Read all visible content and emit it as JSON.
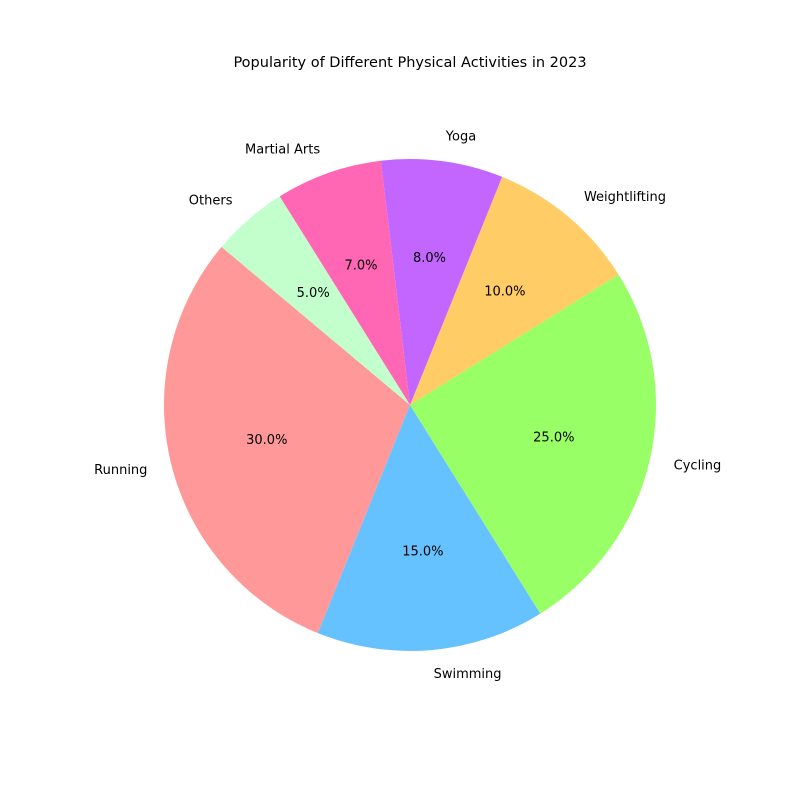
{
  "chart_data": {
    "type": "pie",
    "title": "Popularity of Different Physical Activities in 2023",
    "categories": [
      "Running",
      "Swimming",
      "Cycling",
      "Weightlifting",
      "Yoga",
      "Martial Arts",
      "Others"
    ],
    "values": [
      30.0,
      15.0,
      25.0,
      10.0,
      8.0,
      7.0,
      5.0
    ],
    "percent_labels": [
      "30.0%",
      "15.0%",
      "25.0%",
      "10.0%",
      "8.0%",
      "7.0%",
      "5.0%"
    ],
    "colors": [
      "#ff9999",
      "#66c2ff",
      "#99ff66",
      "#ffcc66",
      "#c266ff",
      "#ff66b3",
      "#c2ffcc"
    ],
    "start_angle_deg": 140,
    "direction": "counterclockwise"
  }
}
